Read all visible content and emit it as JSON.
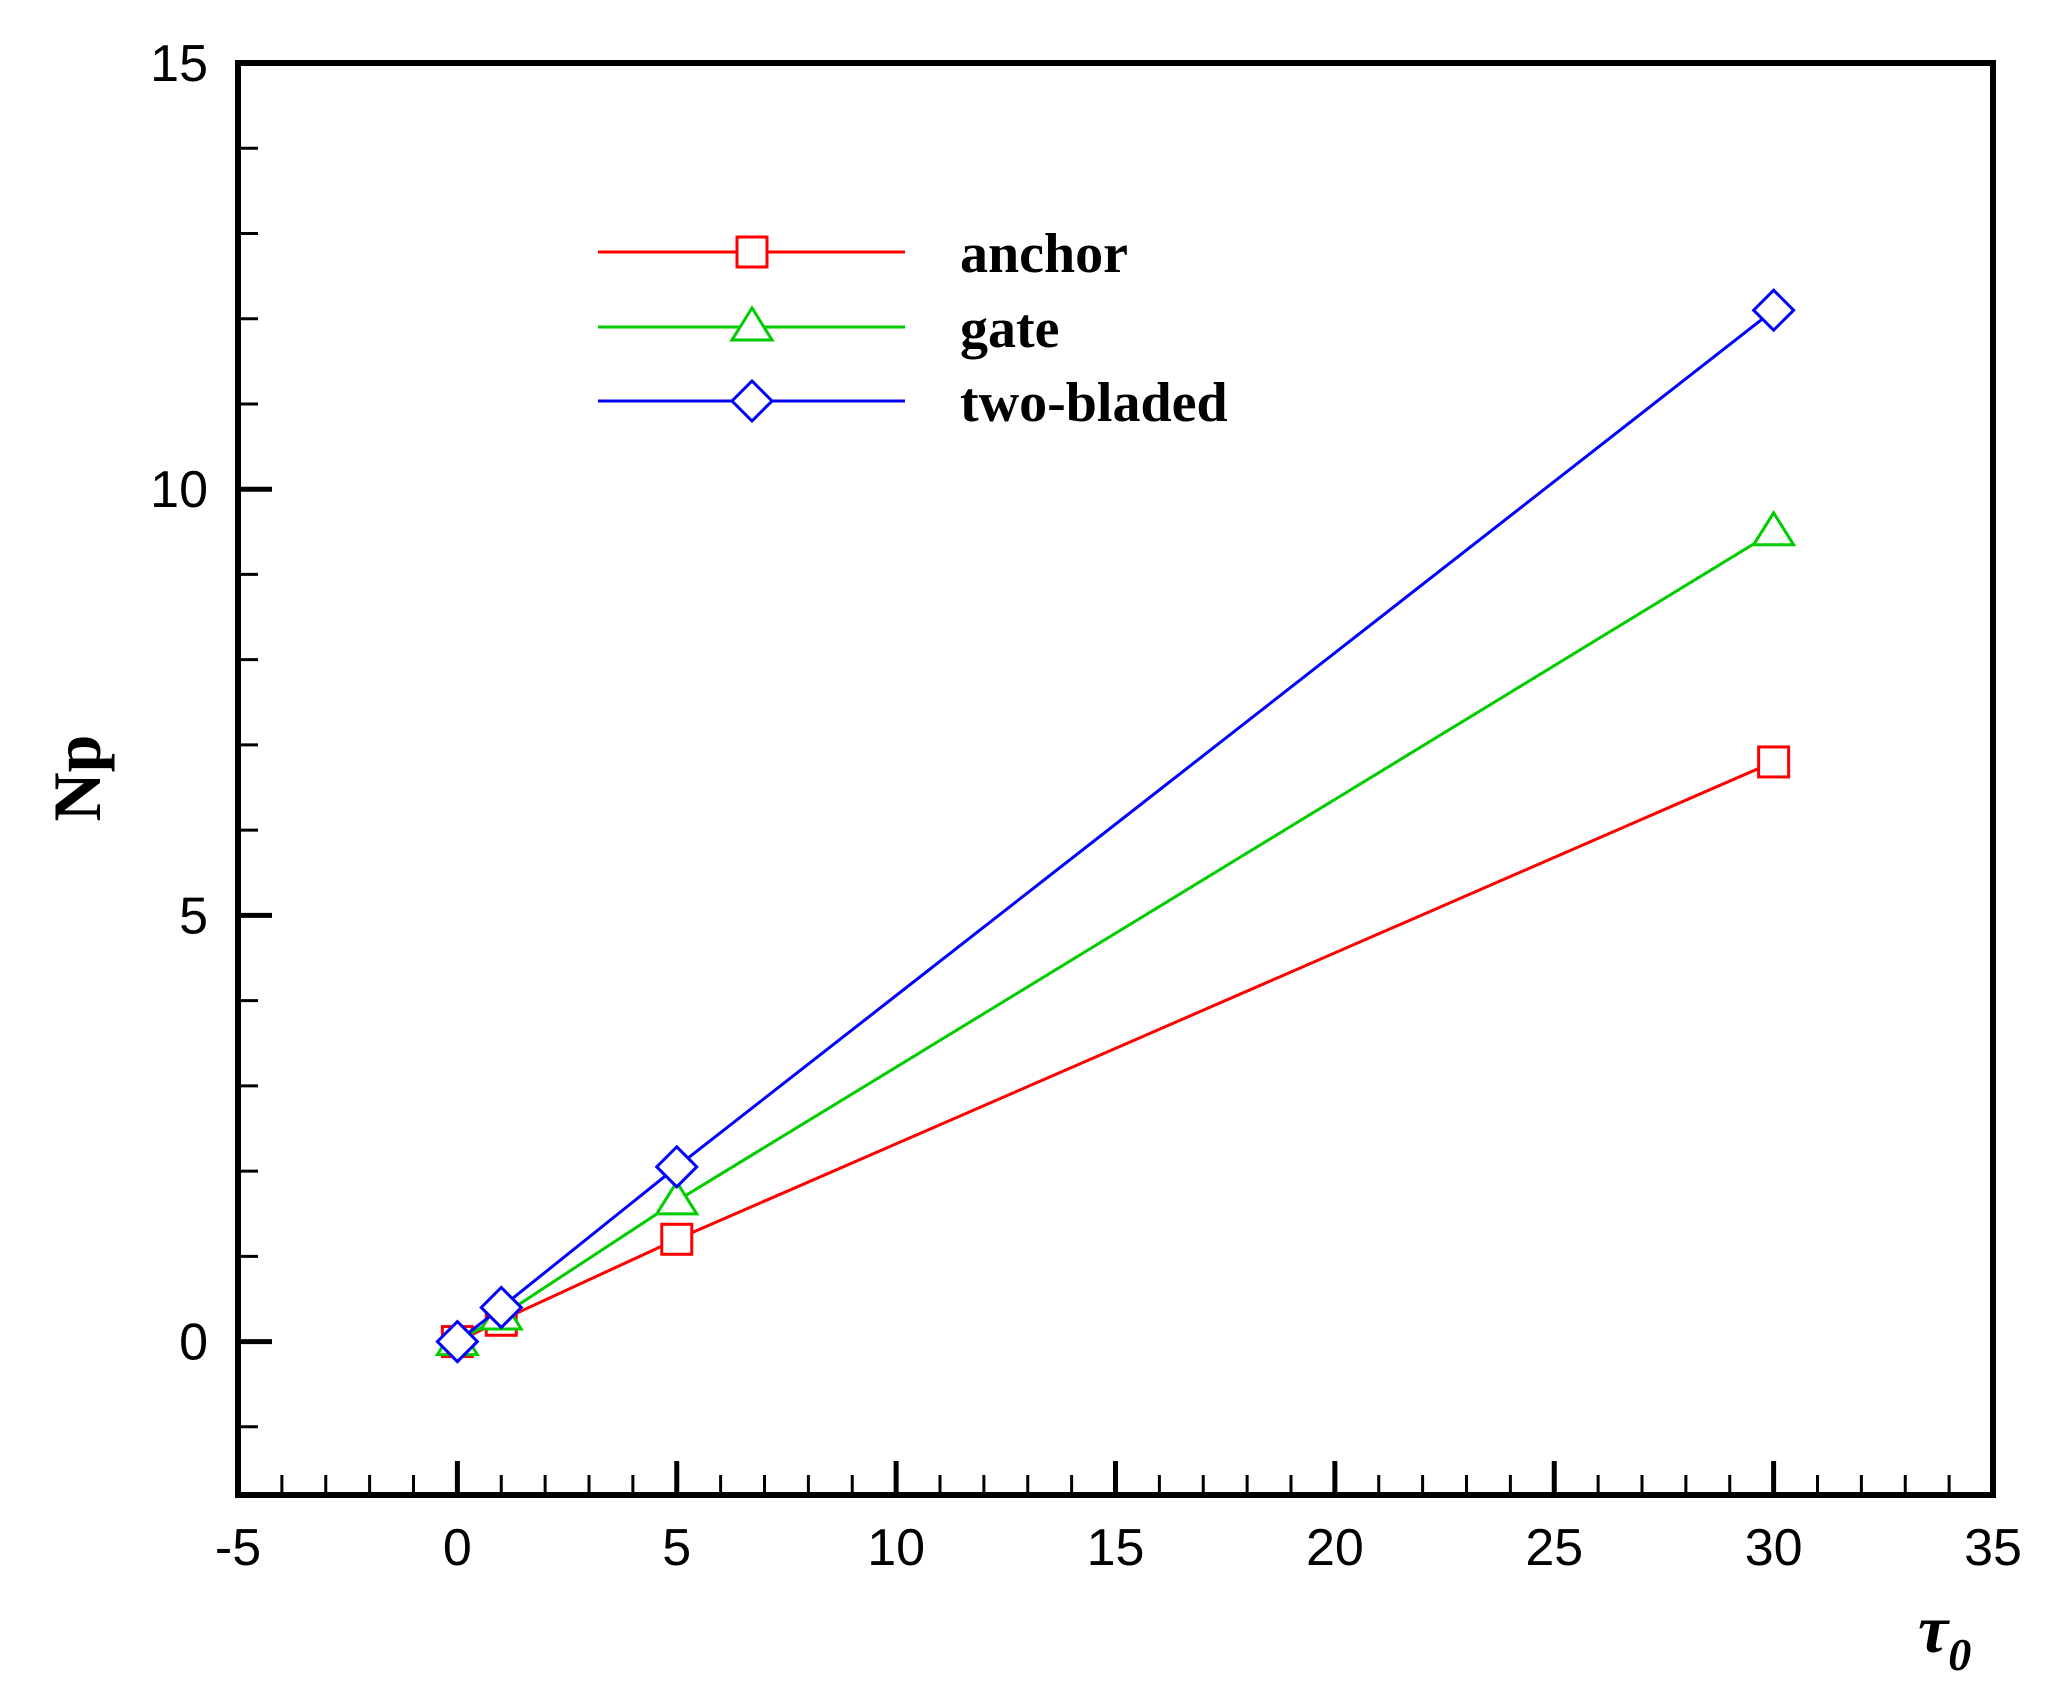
{
  "chart_data": {
    "type": "line",
    "xlabel": "τ",
    "xlabel_subscript": "0",
    "ylabel": "Np",
    "xlim": [
      -5,
      35
    ],
    "ylim": [
      -1.8,
      15
    ],
    "x_major_ticks": [
      -5,
      0,
      5,
      10,
      15,
      20,
      25,
      30,
      35
    ],
    "x_tick_labels": [
      "-5",
      "0",
      "5",
      "10",
      "15",
      "20",
      "25",
      "30",
      "35"
    ],
    "y_major_ticks": [
      0,
      5,
      10,
      15
    ],
    "y_tick_labels": [
      "0",
      "5",
      "10",
      "15"
    ],
    "grid": false,
    "legend_position": "top-center",
    "series": [
      {
        "name": "anchor",
        "color": "#ff0000",
        "marker": "square",
        "x": [
          0,
          1,
          5,
          30
        ],
        "y": [
          0,
          0.25,
          1.2,
          6.8
        ]
      },
      {
        "name": "gate",
        "color": "#00cc00",
        "marker": "triangle",
        "x": [
          0,
          1,
          5,
          30
        ],
        "y": [
          0,
          0.3,
          1.65,
          9.5
        ]
      },
      {
        "name": "two-bladed",
        "color": "#0000ff",
        "marker": "diamond",
        "x": [
          0,
          1,
          5,
          30
        ],
        "y": [
          0,
          0.4,
          2.05,
          12.1
        ]
      }
    ]
  }
}
